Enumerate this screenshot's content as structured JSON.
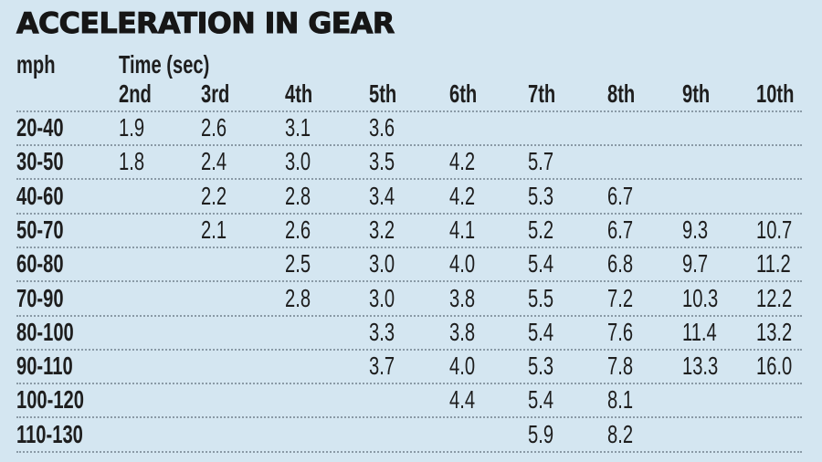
{
  "title": "ACCELERATION IN GEAR",
  "chart_data": {
    "type": "table",
    "title": "ACCELERATION IN GEAR",
    "row_header_label": "mph",
    "column_group_label": "Time (sec)",
    "columns": [
      "2nd",
      "3rd",
      "4th",
      "5th",
      "6th",
      "7th",
      "8th",
      "9th",
      "10th"
    ],
    "rows": [
      {
        "mph": "20-40",
        "values": [
          "1.9",
          "2.6",
          "3.1",
          "3.6",
          "",
          "",
          "",
          "",
          ""
        ]
      },
      {
        "mph": "30-50",
        "values": [
          "1.8",
          "2.4",
          "3.0",
          "3.5",
          "4.2",
          "5.7",
          "",
          "",
          ""
        ]
      },
      {
        "mph": "40-60",
        "values": [
          "",
          "2.2",
          "2.8",
          "3.4",
          "4.2",
          "5.3",
          "6.7",
          "",
          ""
        ]
      },
      {
        "mph": "50-70",
        "values": [
          "",
          "2.1",
          "2.6",
          "3.2",
          "4.1",
          "5.2",
          "6.7",
          "9.3",
          "10.7"
        ]
      },
      {
        "mph": "60-80",
        "values": [
          "",
          "",
          "2.5",
          "3.0",
          "4.0",
          "5.4",
          "6.8",
          "9.7",
          "11.2"
        ]
      },
      {
        "mph": "70-90",
        "values": [
          "",
          "",
          "2.8",
          "3.0",
          "3.8",
          "5.5",
          "7.2",
          "10.3",
          "12.2"
        ]
      },
      {
        "mph": "80-100",
        "values": [
          "",
          "",
          "",
          "3.3",
          "3.8",
          "5.4",
          "7.6",
          "11.4",
          "13.2"
        ]
      },
      {
        "mph": "90-110",
        "values": [
          "",
          "",
          "",
          "3.7",
          "4.0",
          "5.3",
          "7.8",
          "13.3",
          "16.0"
        ]
      },
      {
        "mph": "100-120",
        "values": [
          "",
          "",
          "",
          "",
          "4.4",
          "5.4",
          "8.1",
          "",
          ""
        ]
      },
      {
        "mph": "110-130",
        "values": [
          "",
          "",
          "",
          "",
          "",
          "5.9",
          "8.2",
          "",
          ""
        ]
      }
    ]
  }
}
